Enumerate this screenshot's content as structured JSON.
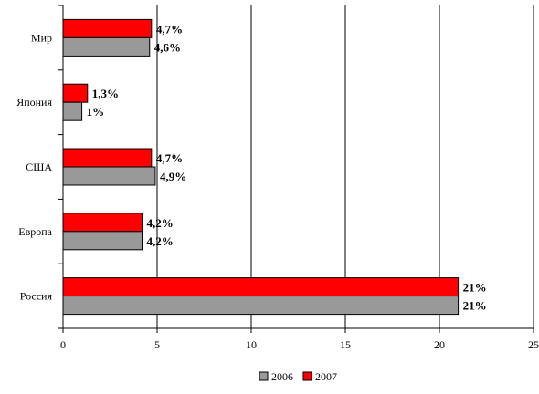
{
  "chart_data": {
    "type": "bar",
    "orientation": "horizontal",
    "categories": [
      "Мир",
      "Япония",
      "США",
      "Европа",
      "Россия"
    ],
    "series": [
      {
        "name": "2007",
        "color": "#ff0000",
        "values": [
          4.7,
          1.3,
          4.7,
          4.2,
          21
        ],
        "labels": [
          "4,7%",
          "1,3%",
          "4,7%",
          "4,2%",
          "21%"
        ]
      },
      {
        "name": "2006",
        "color": "#999999",
        "values": [
          4.6,
          1,
          4.9,
          4.2,
          21
        ],
        "labels": [
          "4,6%",
          "1%",
          "4,9%",
          "4,2%",
          "21%"
        ]
      }
    ],
    "xlim": [
      0,
      25
    ],
    "xticks": [
      "0",
      "5",
      "10",
      "15",
      "20",
      "25"
    ],
    "xgrid": true,
    "legend_position": "bottom",
    "legend_entries": [
      "2006",
      "2007"
    ]
  }
}
